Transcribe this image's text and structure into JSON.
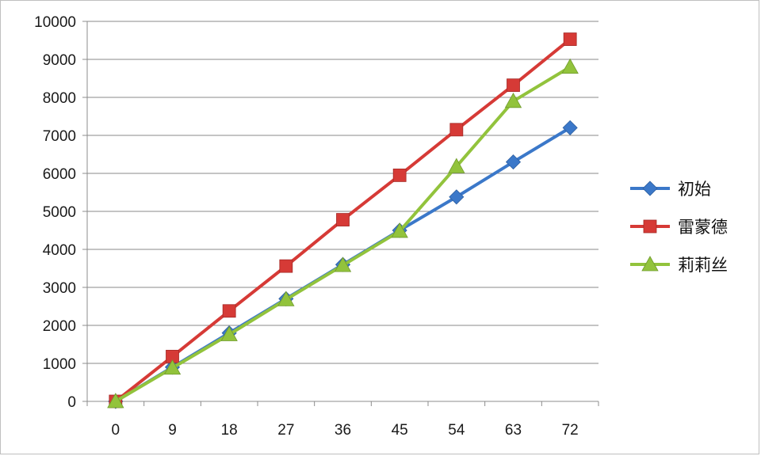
{
  "chart_data": {
    "type": "line",
    "title": "",
    "xlabel": "",
    "ylabel": "",
    "x": [
      0,
      9,
      18,
      27,
      36,
      45,
      54,
      63,
      72
    ],
    "ylim": [
      0,
      10000
    ],
    "yticks": [
      0,
      1000,
      2000,
      3000,
      4000,
      5000,
      6000,
      7000,
      8000,
      9000,
      10000
    ],
    "grid": "horizontal",
    "legend_position": "right",
    "series": [
      {
        "name": "初始",
        "color": "#3b78c9",
        "marker": "diamond",
        "values": [
          0,
          900,
          1800,
          2700,
          3600,
          4500,
          5380,
          6300,
          7200
        ]
      },
      {
        "name": "雷蒙德",
        "color": "#d63a36",
        "marker": "square",
        "values": [
          0,
          1180,
          2380,
          3560,
          4780,
          5950,
          7150,
          8320,
          9530
        ]
      },
      {
        "name": "莉莉丝",
        "color": "#92c33c",
        "marker": "triangle",
        "values": [
          0,
          880,
          1760,
          2680,
          3580,
          4480,
          6180,
          7900,
          8800
        ]
      }
    ]
  }
}
